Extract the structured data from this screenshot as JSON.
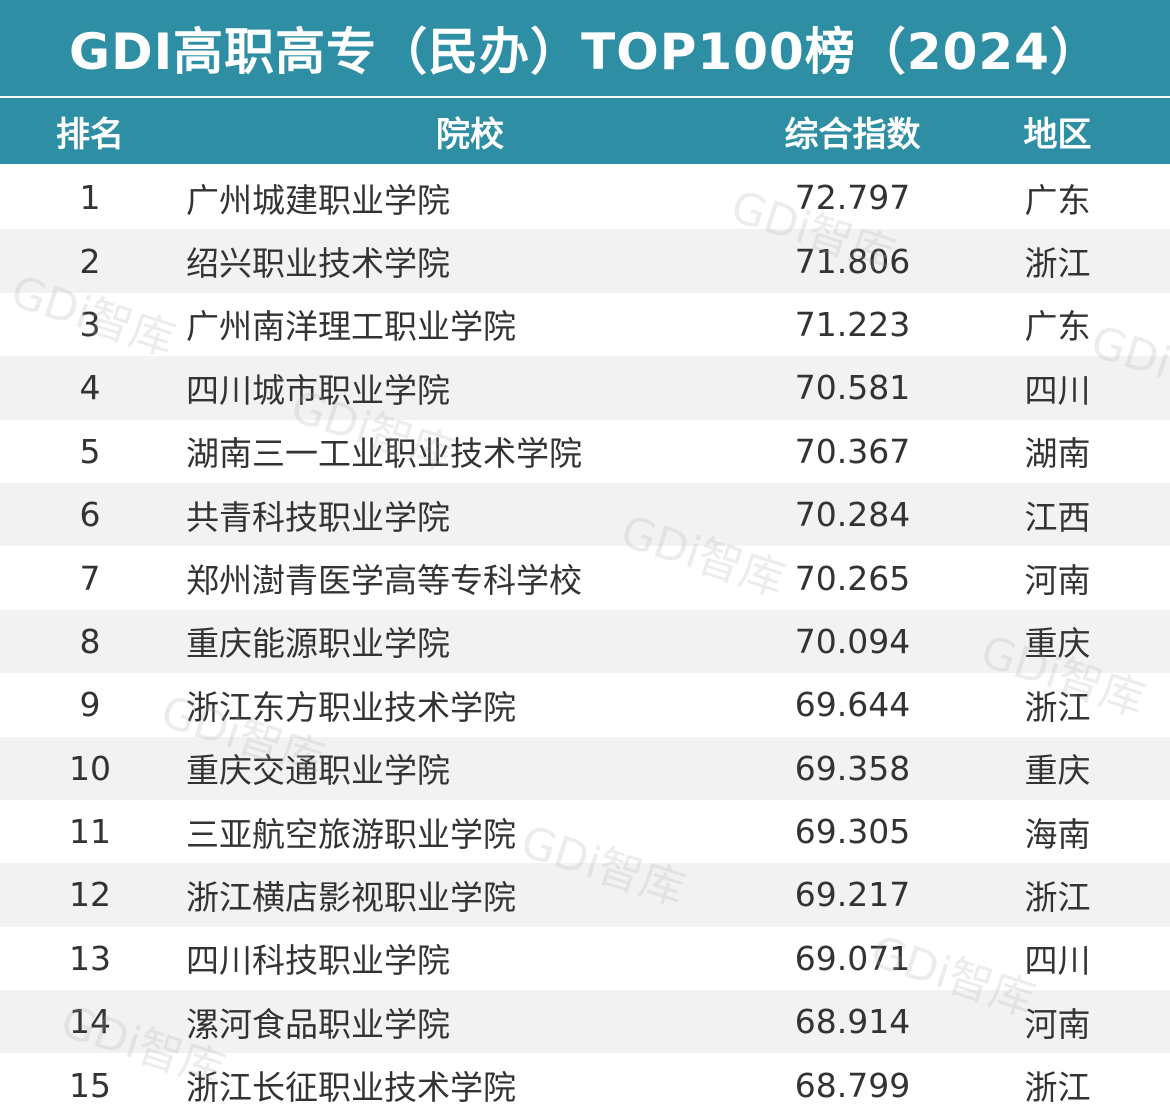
{
  "title": "GDI高职高专（民办）TOP100榜（2024）",
  "header": {
    "rank": "排名",
    "school": "院校",
    "score": "综合指数",
    "region": "地区"
  },
  "rows": [
    {
      "rank": "1",
      "school": "广州城建职业学院",
      "score": "72.797",
      "region": "广东"
    },
    {
      "rank": "2",
      "school": "绍兴职业技术学院",
      "score": "71.806",
      "region": "浙江"
    },
    {
      "rank": "3",
      "school": "广州南洋理工职业学院",
      "score": "71.223",
      "region": "广东"
    },
    {
      "rank": "4",
      "school": "四川城市职业学院",
      "score": "70.581",
      "region": "四川"
    },
    {
      "rank": "5",
      "school": "湖南三一工业职业技术学院",
      "score": "70.367",
      "region": "湖南"
    },
    {
      "rank": "6",
      "school": "共青科技职业学院",
      "score": "70.284",
      "region": "江西"
    },
    {
      "rank": "7",
      "school": "郑州澍青医学高等专科学校",
      "score": "70.265",
      "region": "河南"
    },
    {
      "rank": "8",
      "school": "重庆能源职业学院",
      "score": "70.094",
      "region": "重庆"
    },
    {
      "rank": "9",
      "school": "浙江东方职业技术学院",
      "score": "69.644",
      "region": "浙江"
    },
    {
      "rank": "10",
      "school": "重庆交通职业学院",
      "score": "69.358",
      "region": "重庆"
    },
    {
      "rank": "11",
      "school": "三亚航空旅游职业学院",
      "score": "69.305",
      "region": "海南"
    },
    {
      "rank": "12",
      "school": "浙江横店影视职业学院",
      "score": "69.217",
      "region": "浙江"
    },
    {
      "rank": "13",
      "school": "四川科技职业学院",
      "score": "69.071",
      "region": "四川"
    },
    {
      "rank": "14",
      "school": "漯河食品职业学院",
      "score": "68.914",
      "region": "河南"
    },
    {
      "rank": "15",
      "school": "浙江长征职业技术学院",
      "score": "68.799",
      "region": "浙江"
    }
  ],
  "watermark_text": "GDi智库"
}
